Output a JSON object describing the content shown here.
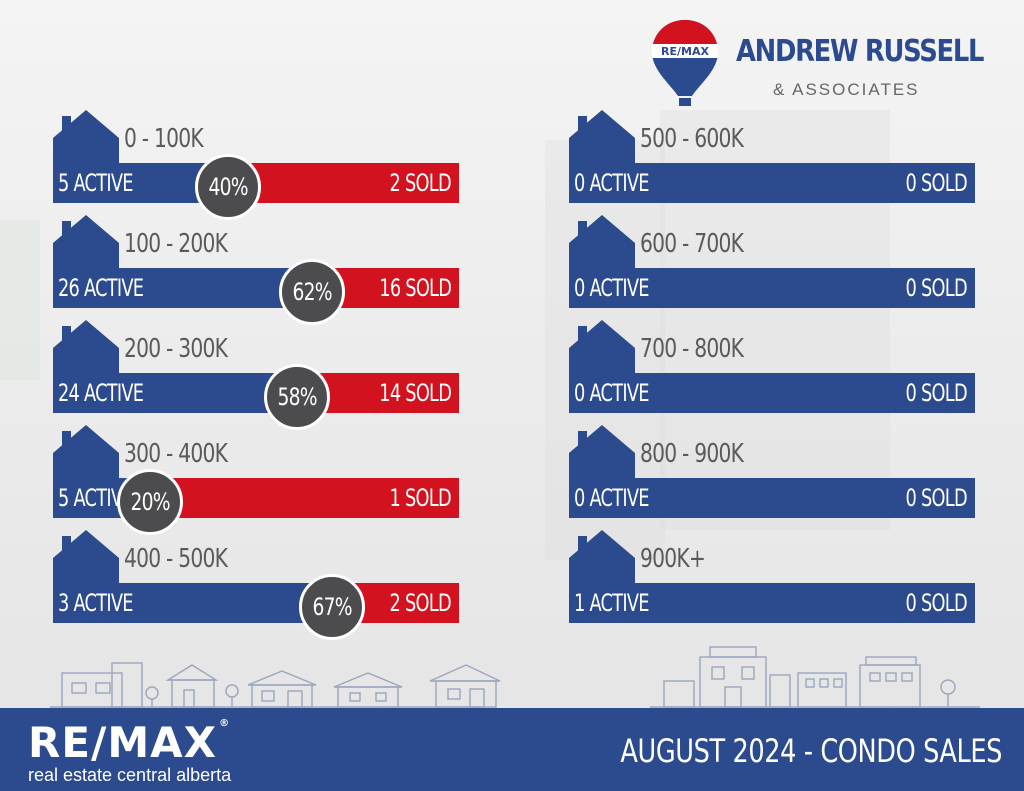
{
  "brand": {
    "balloon_text": "RE/MAX",
    "team_name": "ANDREW RUSSELL",
    "team_sub": "& ASSOCIATES"
  },
  "chart_data": {
    "type": "bar",
    "title": "AUGUST 2024 -  CONDO SALES",
    "rows": [
      {
        "range": "0 - 100K",
        "active": 5,
        "sold": 2,
        "ratio": 40,
        "active_label": "5 ACTIVE",
        "sold_label": "2 SOLD",
        "ratio_label": "40%"
      },
      {
        "range": "100 - 200K",
        "active": 26,
        "sold": 16,
        "ratio": 62,
        "active_label": "26 ACTIVE",
        "sold_label": "16 SOLD",
        "ratio_label": "62%"
      },
      {
        "range": "200 - 300K",
        "active": 24,
        "sold": 14,
        "ratio": 58,
        "active_label": "24 ACTIVE",
        "sold_label": "14 SOLD",
        "ratio_label": "58%"
      },
      {
        "range": "300 - 400K",
        "active": 5,
        "sold": 1,
        "ratio": 20,
        "active_label": "5 ACTIVE",
        "sold_label": "1 SOLD",
        "ratio_label": "20%"
      },
      {
        "range": "400 - 500K",
        "active": 3,
        "sold": 2,
        "ratio": 67,
        "active_label": "3 ACTIVE",
        "sold_label": "2 SOLD",
        "ratio_label": "67%"
      },
      {
        "range": "500 - 600K",
        "active": 0,
        "sold": 0,
        "ratio": null,
        "active_label": "0 ACTIVE",
        "sold_label": "0 SOLD",
        "ratio_label": ""
      },
      {
        "range": "600 - 700K",
        "active": 0,
        "sold": 0,
        "ratio": null,
        "active_label": "0 ACTIVE",
        "sold_label": "0 SOLD",
        "ratio_label": ""
      },
      {
        "range": "700 - 800K",
        "active": 0,
        "sold": 0,
        "ratio": null,
        "active_label": "0 ACTIVE",
        "sold_label": "0 SOLD",
        "ratio_label": ""
      },
      {
        "range": "800 - 900K",
        "active": 0,
        "sold": 0,
        "ratio": null,
        "active_label": "0 ACTIVE",
        "sold_label": "0 SOLD",
        "ratio_label": ""
      },
      {
        "range": "900K+",
        "active": 1,
        "sold": 0,
        "ratio": null,
        "active_label": "1 ACTIVE",
        "sold_label": "0 SOLD",
        "ratio_label": ""
      }
    ]
  },
  "colors": {
    "blue": "#2c4a8e",
    "red": "#d2121f",
    "badge": "#4c4b4d",
    "range_text": "#5a5a5a"
  },
  "footer": {
    "logo": "RE/MAX",
    "tagline": "real estate central alberta",
    "title": "AUGUST 2024 -  CONDO SALES"
  }
}
